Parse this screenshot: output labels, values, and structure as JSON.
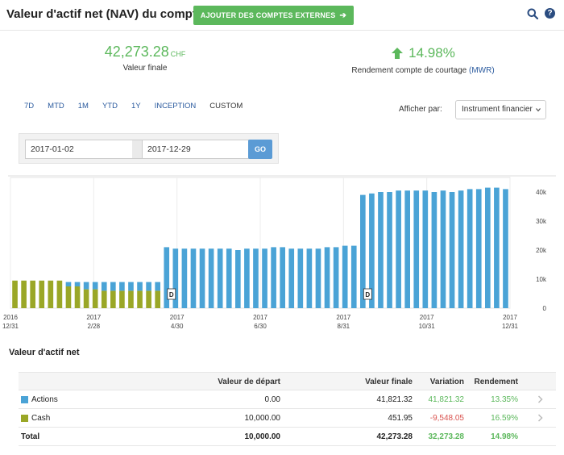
{
  "header": {
    "title": "Valeur d'actif net (NAV) du compte",
    "external_button": "AJOUTER DES COMPTES EXTERNES"
  },
  "summary": {
    "nav_value": "42,273.28",
    "nav_currency": "CHF",
    "nav_label": "Valeur finale",
    "return_value": "14.98%",
    "return_label": "Rendement compte de courtage",
    "return_method": "(MWR)"
  },
  "ranges": [
    "7D",
    "MTD",
    "1M",
    "YTD",
    "1Y",
    "INCEPTION",
    "CUSTOM"
  ],
  "active_range": "CUSTOM",
  "show_by": {
    "label": "Afficher par:",
    "selected": "Instrument financier"
  },
  "dates": {
    "start": "2017-01-02",
    "end": "2017-12-29",
    "go_label": "GO"
  },
  "colors": {
    "actions": "#4aa3d6",
    "cash": "#9aa727",
    "green": "#5cb85c",
    "red": "#d9534f",
    "link": "#2a5a9e"
  },
  "chart_data": {
    "type": "bar",
    "stacked": true,
    "y_ticks": [
      "0",
      "10k",
      "20k",
      "30k",
      "40k"
    ],
    "ylim": [
      0,
      45000
    ],
    "x_ticks": [
      {
        "year": "2016",
        "date": "12/31"
      },
      {
        "year": "2017",
        "date": "2/28"
      },
      {
        "year": "2017",
        "date": "4/30"
      },
      {
        "year": "2017",
        "date": "6/30"
      },
      {
        "year": "2017",
        "date": "8/31"
      },
      {
        "year": "2017",
        "date": "10/31"
      },
      {
        "year": "2017",
        "date": "12/31"
      }
    ],
    "series": [
      {
        "name": "Actions",
        "values": [
          0,
          0,
          0,
          0,
          0,
          0,
          1500,
          1500,
          2500,
          2500,
          3000,
          3000,
          3000,
          3000,
          3000,
          3000,
          3000,
          21000,
          20500,
          20500,
          20500,
          20500,
          20500,
          20500,
          20500,
          20000,
          20500,
          20500,
          20500,
          21000,
          21000,
          20500,
          20500,
          20500,
          20500,
          21000,
          21000,
          21500,
          21500,
          39000,
          39500,
          40000,
          40000,
          40500,
          40500,
          40500,
          40500,
          40000,
          40500,
          40000,
          40500,
          41000,
          41000,
          41500,
          41500,
          41000
        ]
      },
      {
        "name": "Cash",
        "values": [
          9500,
          9500,
          9500,
          9500,
          9500,
          9500,
          7500,
          7500,
          6500,
          6500,
          6000,
          6000,
          6000,
          6000,
          6000,
          6000,
          6000,
          0,
          0,
          0,
          0,
          0,
          0,
          0,
          0,
          0,
          0,
          0,
          0,
          0,
          0,
          0,
          0,
          0,
          0,
          0,
          0,
          0,
          0,
          0,
          0,
          0,
          0,
          0,
          0,
          0,
          0,
          0,
          0,
          0,
          0,
          0,
          0,
          0,
          0,
          0
        ]
      }
    ],
    "markers": [
      {
        "label": "D",
        "bar_index": 17
      },
      {
        "label": "D",
        "bar_index": 39
      }
    ]
  },
  "table": {
    "title": "Valeur d'actif net",
    "headers": {
      "start": "Valeur de départ",
      "final": "Valeur finale",
      "variation": "Variation",
      "return": "Rendement"
    },
    "rows": [
      {
        "name": "Actions",
        "start": "0.00",
        "final": "41,821.32",
        "variation": "41,821.32",
        "return": "13.35%"
      },
      {
        "name": "Cash",
        "start": "10,000.00",
        "final": "451.95",
        "variation": "-9,548.05",
        "return": "16.59%"
      }
    ],
    "total": {
      "name": "Total",
      "start": "10,000.00",
      "final": "42,273.28",
      "variation": "32,273.28",
      "return": "14.98%"
    }
  }
}
